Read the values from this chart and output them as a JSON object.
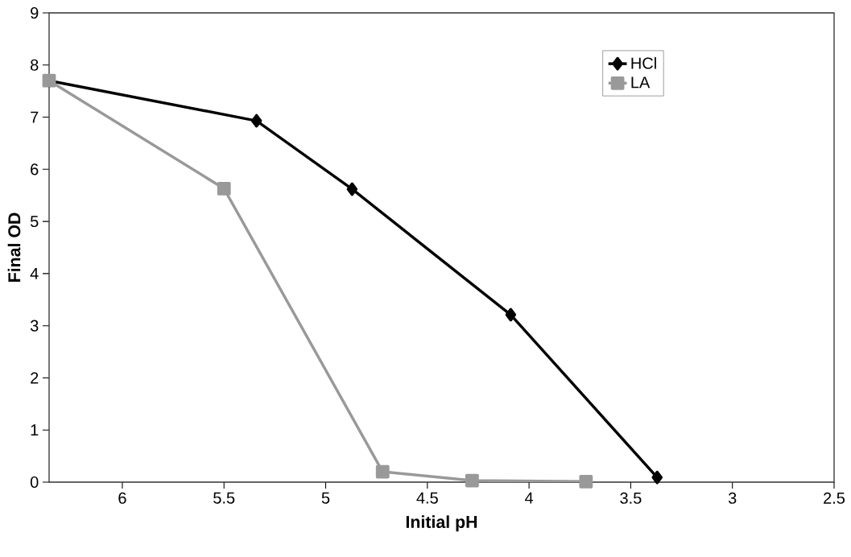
{
  "chart_data": {
    "type": "line",
    "xlabel": "Initial pH",
    "ylabel": "Final OD",
    "xlim": [
      6.36,
      2.5
    ],
    "xticks": [
      6,
      5.5,
      5,
      4.5,
      4,
      3.5,
      3,
      2.5
    ],
    "ylim": [
      0,
      9
    ],
    "yticks": [
      0,
      1,
      2,
      3,
      4,
      5,
      6,
      7,
      8,
      9
    ],
    "grid": false,
    "legend": "top right",
    "series": [
      {
        "name": "HCl",
        "color": "#000000",
        "marker": "diamond",
        "x": [
          6.36,
          5.34,
          4.87,
          4.09,
          3.37
        ],
        "values": [
          7.7,
          6.93,
          5.62,
          3.21,
          0.09
        ]
      },
      {
        "name": "LA",
        "color": "#999999",
        "marker": "square",
        "x": [
          6.36,
          5.5,
          4.72,
          4.28,
          3.72
        ],
        "values": [
          7.7,
          5.63,
          0.2,
          0.03,
          0.01
        ]
      }
    ]
  }
}
